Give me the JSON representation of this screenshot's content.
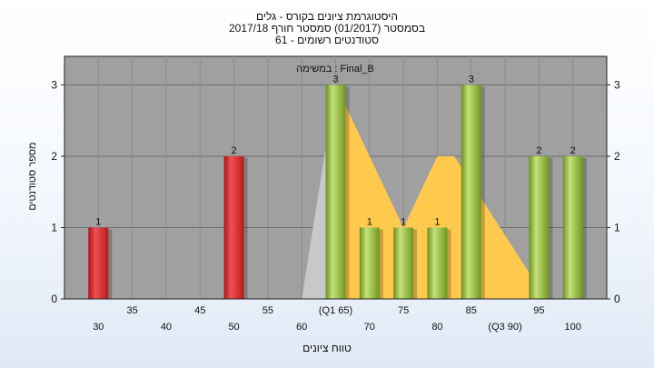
{
  "header": {
    "line1": "היסטוגרמת ציונים בקורס - גלים",
    "line2": "בסמסטר  (01/2017)  סמסטר חורף 2017/18",
    "line3": "סטודנטים רשומים - 61"
  },
  "chart_data": {
    "type": "bar",
    "subtitle": "במשימה : Final_B",
    "xlabel": "טווח ציונים",
    "ylabel": "מספר סטודנטים",
    "ylim": [
      0,
      3.4
    ],
    "yticks": [
      0,
      1,
      2,
      3
    ],
    "x_range": [
      25,
      105
    ],
    "categories": [
      30,
      50,
      65,
      70,
      75,
      80,
      85,
      95,
      100
    ],
    "values": [
      1,
      2,
      3,
      1,
      1,
      1,
      3,
      2,
      2
    ],
    "bar_colors": [
      "#d62b2b",
      "#d62b2b",
      "#8fb832",
      "#8fb832",
      "#8fb832",
      "#8fb832",
      "#8fb832",
      "#8fb832",
      "#8fb832"
    ],
    "x_tick_labels": [
      {
        "x": 30,
        "label": "30",
        "row": 2
      },
      {
        "x": 35,
        "label": "35",
        "row": 1
      },
      {
        "x": 40,
        "label": "40",
        "row": 2
      },
      {
        "x": 45,
        "label": "45",
        "row": 1
      },
      {
        "x": 50,
        "label": "50",
        "row": 2
      },
      {
        "x": 55,
        "label": "55",
        "row": 1
      },
      {
        "x": 60,
        "label": "60",
        "row": 2
      },
      {
        "x": 65,
        "label": "(Q1 65)",
        "row": 1
      },
      {
        "x": 70,
        "label": "70",
        "row": 2
      },
      {
        "x": 75,
        "label": "75",
        "row": 1
      },
      {
        "x": 80,
        "label": "80",
        "row": 2
      },
      {
        "x": 85,
        "label": "85",
        "row": 1
      },
      {
        "x": 90,
        "label": "(Q3 90)",
        "row": 2
      },
      {
        "x": 95,
        "label": "95",
        "row": 1
      },
      {
        "x": 100,
        "label": "100",
        "row": 2
      }
    ],
    "gray_area": [
      [
        60,
        0
      ],
      [
        65,
        3
      ],
      [
        65,
        0
      ]
    ],
    "area_fill_gray": "#c8c8c8",
    "quartile_area": [
      [
        65,
        3
      ],
      [
        75,
        1
      ],
      [
        80,
        2
      ],
      [
        82.5,
        2
      ],
      [
        94,
        0.3
      ],
      [
        94,
        0
      ],
      [
        65,
        0
      ]
    ],
    "area_fill": "#ffc94d",
    "plot_background": "#a0a0a0",
    "grid": true
  }
}
